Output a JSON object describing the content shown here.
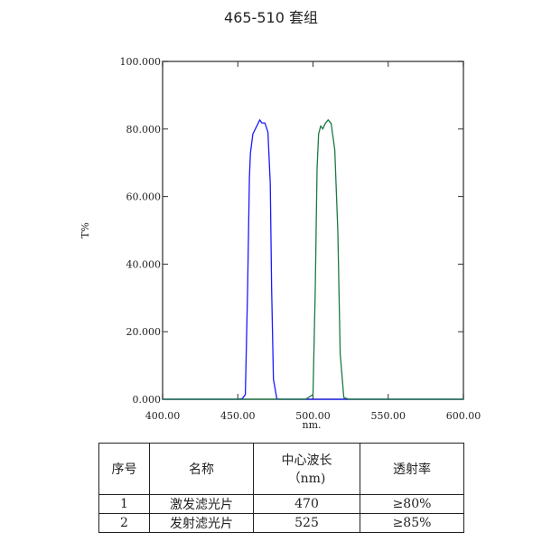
{
  "chart_data": {
    "type": "line",
    "title": "465-510 套组",
    "xlabel": "nm.",
    "ylabel": "T%",
    "xlim": [
      400,
      600
    ],
    "ylim": [
      0,
      100
    ],
    "xticks": [
      "400.00",
      "450.00",
      "500.00",
      "550.00",
      "600.00"
    ],
    "yticks": [
      "0.000",
      "20.000",
      "40.000",
      "60.000",
      "80.000",
      "100.000"
    ],
    "grid": false,
    "series": [
      {
        "color": "#1a1aff",
        "x": [
          400,
          449.8,
          453,
          455,
          456.5,
          457.7,
          458.4,
          460,
          462,
          464.6,
          466,
          468,
          470,
          471.6,
          472.5,
          473.7,
          476,
          480,
          600
        ],
        "y": [
          0,
          0,
          0.2,
          1.4,
          32.6,
          65.6,
          72.7,
          78.5,
          80.3,
          82.7,
          81.8,
          81.8,
          79.1,
          63.9,
          32.6,
          5.9,
          0.1,
          0,
          0
        ]
      },
      {
        "color": "#1a7a45",
        "x": [
          400,
          495,
          500,
          501.5,
          502.7,
          503.7,
          505.1,
          506.5,
          508.1,
          510.1,
          512.1,
          514.5,
          516.5,
          518.1,
          520.5,
          524,
          600
        ],
        "y": [
          0,
          0,
          1.4,
          32.6,
          68.3,
          78.5,
          80.9,
          80.0,
          81.6,
          82.7,
          81.6,
          73.8,
          49.7,
          13.4,
          0.5,
          0,
          0
        ]
      }
    ]
  },
  "table": {
    "headers": [
      "序号",
      "名称",
      "中心波长",
      "（nm)",
      "透射率"
    ],
    "rows": [
      [
        "1",
        "激发滤光片",
        "470",
        "≥80%"
      ],
      [
        "2",
        "发射滤光片",
        "525",
        "≥85%"
      ]
    ]
  }
}
